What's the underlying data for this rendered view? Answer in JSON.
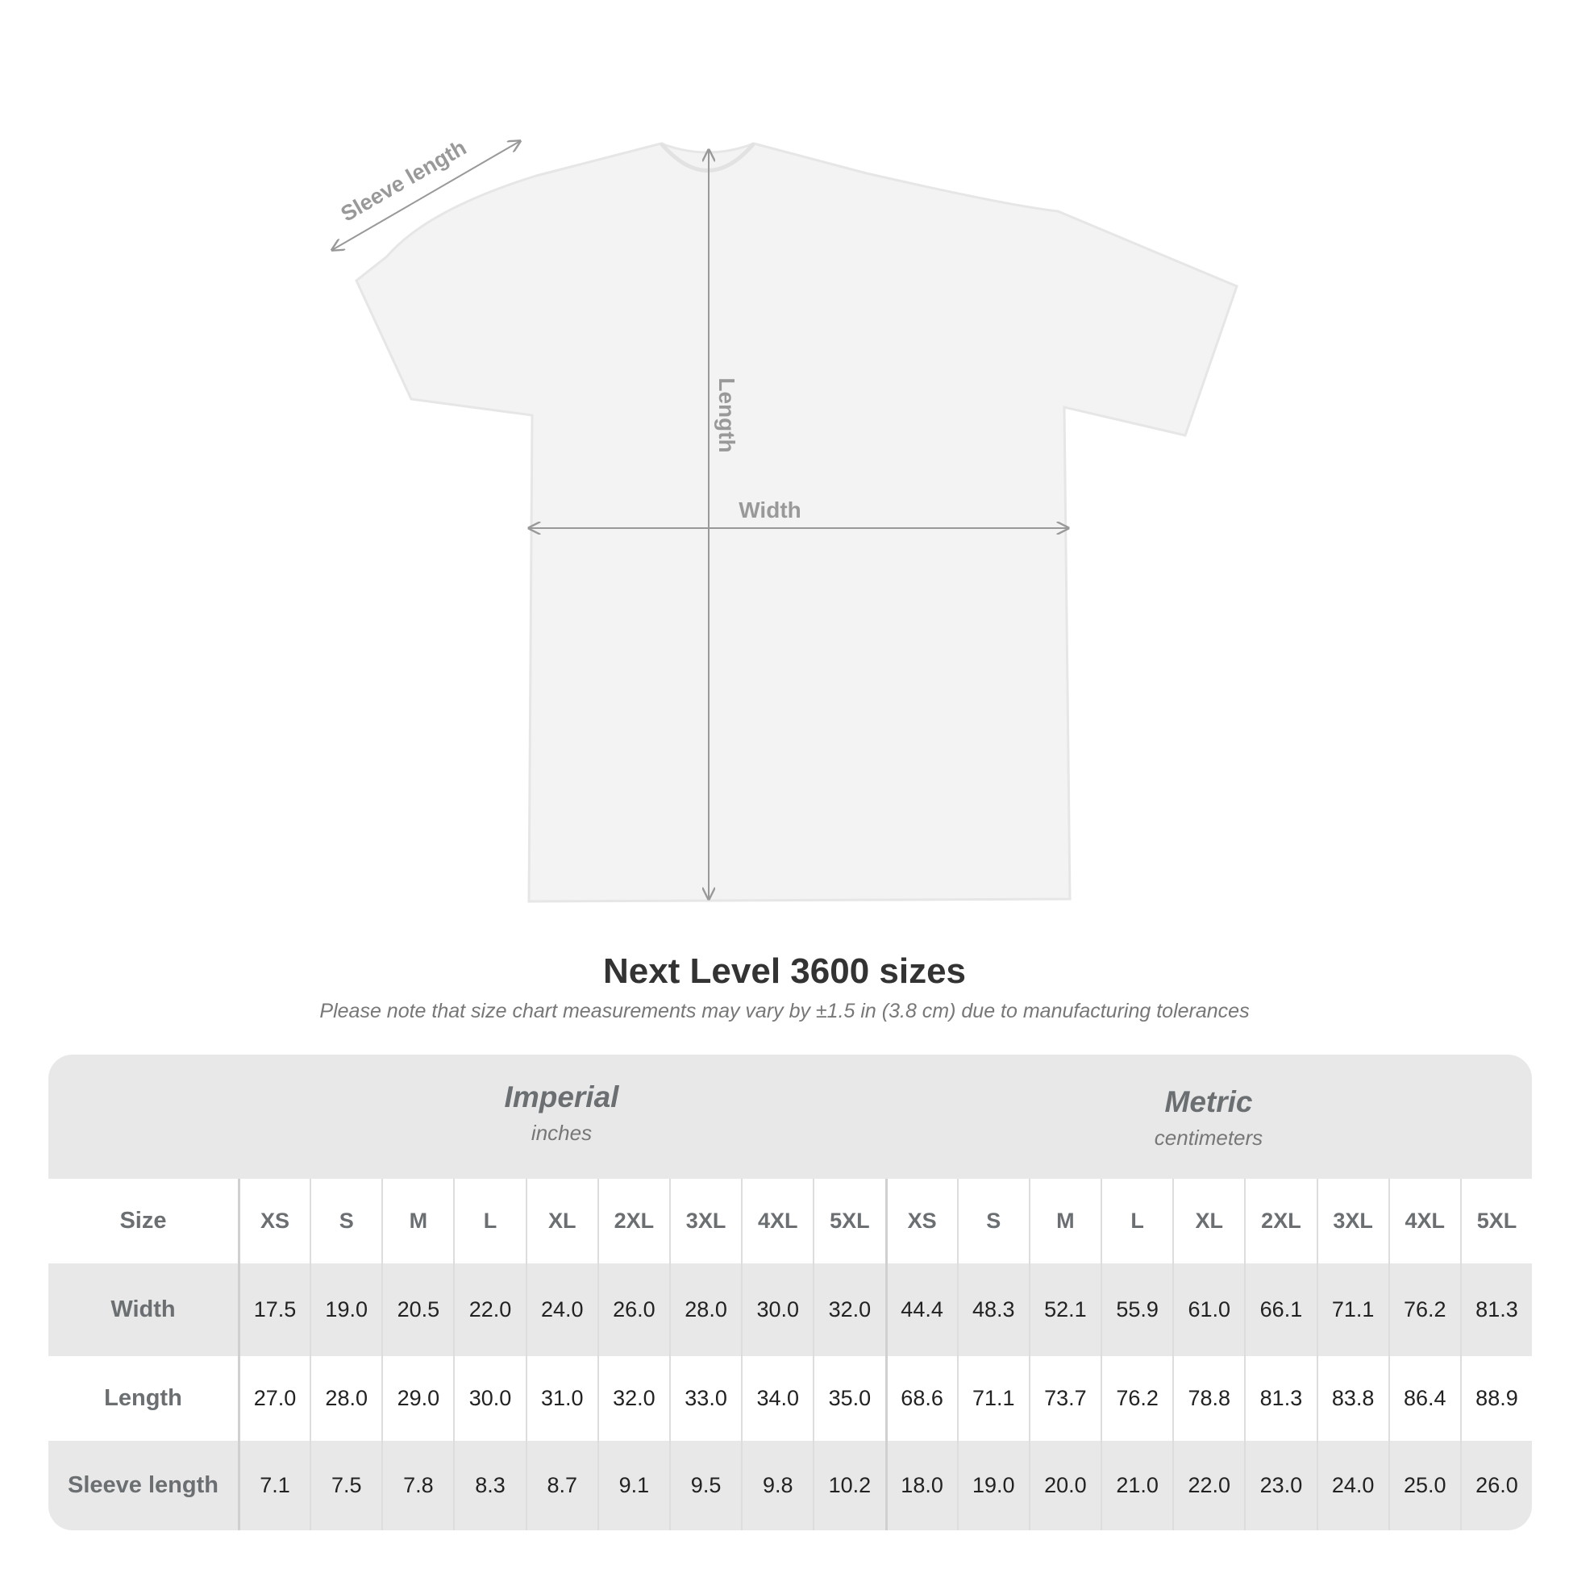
{
  "diagram": {
    "sleeve_label": "Sleeve length",
    "length_label": "Length",
    "width_label": "Width"
  },
  "title": "Next Level 3600 sizes",
  "subtitle": "Please note that size chart measurements may vary by ±1.5 in (3.8 cm) due to manufacturing tolerances",
  "table": {
    "imperial": {
      "label": "Imperial",
      "unit": "inches"
    },
    "metric": {
      "label": "Metric",
      "unit": "centimeters"
    },
    "size_label": "Size",
    "sizes": [
      "XS",
      "S",
      "M",
      "L",
      "XL",
      "2XL",
      "3XL",
      "4XL",
      "5XL"
    ],
    "rows": [
      {
        "label": "Width",
        "imperial": [
          "17.5",
          "19.0",
          "20.5",
          "22.0",
          "24.0",
          "26.0",
          "28.0",
          "30.0",
          "32.0"
        ],
        "metric": [
          "44.4",
          "48.3",
          "52.1",
          "55.9",
          "61.0",
          "66.1",
          "71.1",
          "76.2",
          "81.3"
        ]
      },
      {
        "label": "Length",
        "imperial": [
          "27.0",
          "28.0",
          "29.0",
          "30.0",
          "31.0",
          "32.0",
          "33.0",
          "34.0",
          "35.0"
        ],
        "metric": [
          "68.6",
          "71.1",
          "73.7",
          "76.2",
          "78.8",
          "81.3",
          "83.8",
          "86.4",
          "88.9"
        ]
      },
      {
        "label": "Sleeve length",
        "imperial": [
          "7.1",
          "7.5",
          "7.8",
          "8.3",
          "8.7",
          "9.1",
          "9.5",
          "9.8",
          "10.2"
        ],
        "metric": [
          "18.0",
          "19.0",
          "20.0",
          "21.0",
          "22.0",
          "23.0",
          "24.0",
          "25.0",
          "26.0"
        ]
      }
    ]
  }
}
